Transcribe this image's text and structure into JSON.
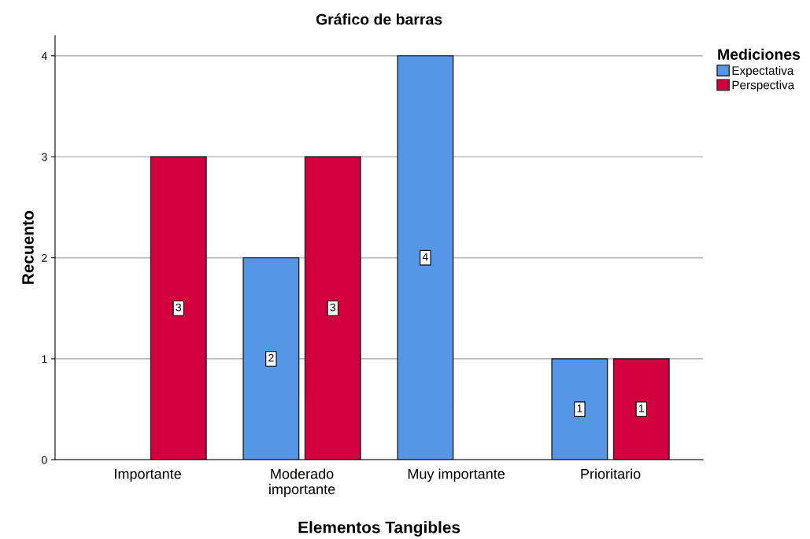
{
  "chart_data": {
    "type": "bar",
    "title": "Gráfico de barras",
    "xlabel": "Elementos Tangibles",
    "ylabel": "Recuento",
    "legend_title": "Mediciones",
    "categories": [
      "Importante",
      "Moderado\nimportante",
      "Muy importante",
      "Prioritario"
    ],
    "series": [
      {
        "name": "Expectativa",
        "color": "#5596e6",
        "values": [
          null,
          2,
          4,
          1
        ]
      },
      {
        "name": "Perspectiva",
        "color": "#d3003f",
        "values": [
          3,
          3,
          null,
          1
        ]
      }
    ],
    "ylim": [
      0,
      4.2
    ],
    "yticks": [
      0,
      1,
      2,
      3,
      4
    ],
    "grid": "y",
    "legend": "top right",
    "data_labels": true
  }
}
